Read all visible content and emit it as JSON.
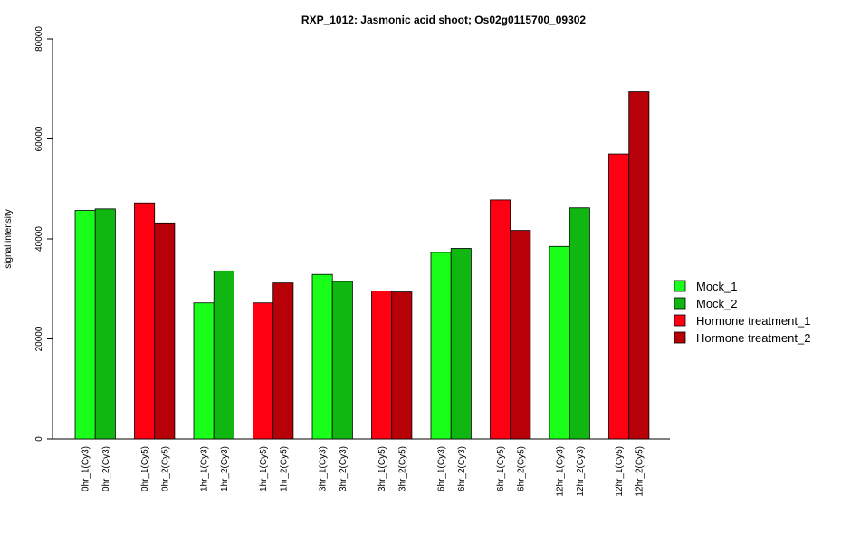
{
  "chart_data": {
    "type": "bar",
    "title": "RXP_1012: Jasmonic acid shoot; Os02g0115700_09302",
    "ylabel": "signal intensity",
    "xlabel": "",
    "ylim": [
      0,
      80000
    ],
    "yticks": [
      0,
      20000,
      40000,
      60000,
      80000
    ],
    "grid": false,
    "legend_position": "right",
    "legend": [
      {
        "name": "Mock_1",
        "color": "#1aff1a"
      },
      {
        "name": "Mock_2",
        "color": "#10b710"
      },
      {
        "name": "Hormone treatment_1",
        "color": "#ff0013"
      },
      {
        "name": "Hormone treatment_2",
        "color": "#b70007"
      }
    ],
    "groups": [
      {
        "bars": [
          {
            "label": "0hr_1(Cy3)",
            "value": 45700,
            "color": "#1aff1a"
          },
          {
            "label": "0hr_2(Cy3)",
            "value": 46000,
            "color": "#10b710"
          }
        ]
      },
      {
        "bars": [
          {
            "label": "0hr_1(Cy5)",
            "value": 47200,
            "color": "#ff0013"
          },
          {
            "label": "0hr_2(Cy5)",
            "value": 43200,
            "color": "#b70007"
          }
        ]
      },
      {
        "bars": [
          {
            "label": "1hr_1(Cy3)",
            "value": 27200,
            "color": "#1aff1a"
          },
          {
            "label": "1hr_2(Cy3)",
            "value": 33600,
            "color": "#10b710"
          }
        ]
      },
      {
        "bars": [
          {
            "label": "1hr_1(Cy5)",
            "value": 27200,
            "color": "#ff0013"
          },
          {
            "label": "1hr_2(Cy5)",
            "value": 31200,
            "color": "#b70007"
          }
        ]
      },
      {
        "bars": [
          {
            "label": "3hr_1(Cy3)",
            "value": 32900,
            "color": "#1aff1a"
          },
          {
            "label": "3hr_2(Cy3)",
            "value": 31500,
            "color": "#10b710"
          }
        ]
      },
      {
        "bars": [
          {
            "label": "3hr_1(Cy5)",
            "value": 29600,
            "color": "#ff0013"
          },
          {
            "label": "3hr_2(Cy5)",
            "value": 29400,
            "color": "#b70007"
          }
        ]
      },
      {
        "bars": [
          {
            "label": "6hr_1(Cy3)",
            "value": 37300,
            "color": "#1aff1a"
          },
          {
            "label": "6hr_2(Cy3)",
            "value": 38100,
            "color": "#10b710"
          }
        ]
      },
      {
        "bars": [
          {
            "label": "6hr_1(Cy5)",
            "value": 47800,
            "color": "#ff0013"
          },
          {
            "label": "6hr_2(Cy5)",
            "value": 41700,
            "color": "#b70007"
          }
        ]
      },
      {
        "bars": [
          {
            "label": "12hr_1(Cy3)",
            "value": 38500,
            "color": "#1aff1a"
          },
          {
            "label": "12hr_2(Cy3)",
            "value": 46200,
            "color": "#10b710"
          }
        ]
      },
      {
        "bars": [
          {
            "label": "12hr_1(Cy5)",
            "value": 57000,
            "color": "#ff0013"
          },
          {
            "label": "12hr_2(Cy5)",
            "value": 69400,
            "color": "#b70007"
          }
        ]
      }
    ]
  }
}
